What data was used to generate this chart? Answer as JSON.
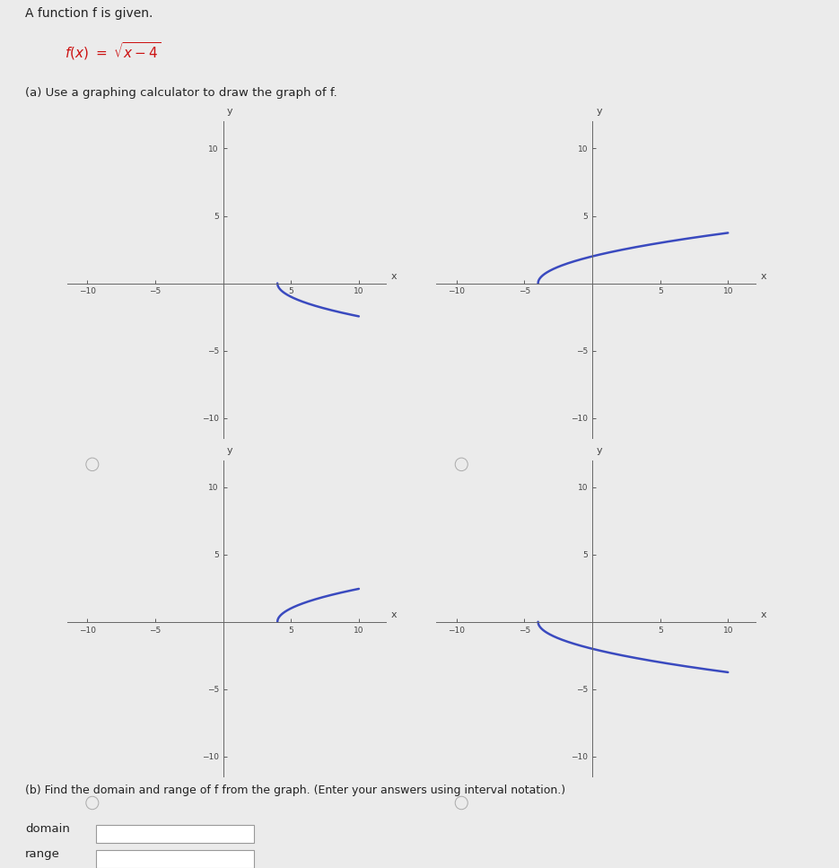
{
  "bg_color": "#ebebeb",
  "white": "#ffffff",
  "curve_color": "#3a4abf",
  "axis_color": "#666666",
  "text_color": "#222222",
  "red_color": "#cc1111",
  "title_text": "A function f is given.",
  "part_a_text": "(a) Use a graphing calculator to draw the graph of f.",
  "part_b_text": "(b) Find the domain and range of f from the graph. (Enter your answers using interval notation.)",
  "domain_label": "domain",
  "range_label": "range",
  "graphs": [
    {
      "x_start": 4,
      "x_end": 10,
      "shift": -4,
      "sign": -1
    },
    {
      "x_start": -4,
      "x_end": 10,
      "shift": 4,
      "sign": 1
    },
    {
      "x_start": 4,
      "x_end": 10,
      "shift": -4,
      "sign": 1
    },
    {
      "x_start": -4,
      "x_end": 10,
      "shift": 4,
      "sign": -1
    }
  ],
  "graph_xlim": [
    -11.5,
    12
  ],
  "graph_ylim": [
    -11.5,
    12
  ],
  "xticks": [
    -10,
    -5,
    5,
    10
  ],
  "yticks": [
    -10,
    -5,
    5,
    10
  ],
  "tick_fontsize": 6.5,
  "axis_label_fontsize": 8,
  "curve_lw": 1.8
}
